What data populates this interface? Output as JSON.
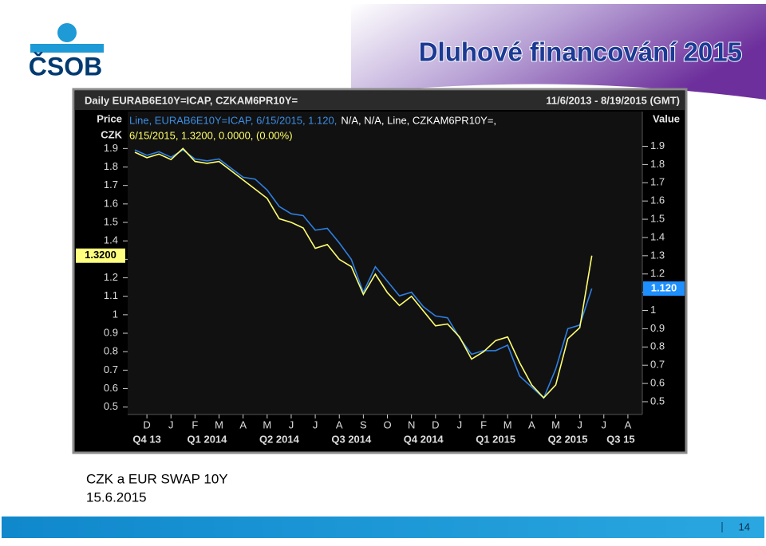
{
  "slide": {
    "logo": "ČSOB",
    "title": "Dluhové financování 2015",
    "caption": "CZK a EUR SWAP 10Y",
    "date": "15.6.2015",
    "page_number": "14"
  },
  "chart_data": {
    "type": "line",
    "header": "Daily EURAB6E10Y=ICAP, CZKAM6PR10Y=",
    "date_range": "11/6/2013 - 8/19/2015 (GMT)",
    "y_label": "Price",
    "y_unit": "CZK",
    "y2_label": "Value",
    "legend": [
      {
        "text": "Line, EURAB6E10Y=ICAP, 6/15/2015, 1.120,",
        "color": "#3a8ee6"
      },
      {
        "text": "N/A, N/A, Line, CZKAM6PR10Y=,",
        "color": "#ffffff"
      },
      {
        "text": "6/15/2015, 1.3200, 0.0000, (0.00%)",
        "color": "#ffff66"
      }
    ],
    "x": [
      0.5,
      1,
      1.5,
      2,
      2.5,
      3,
      3.5,
      4,
      4.5,
      5,
      5.5,
      6,
      6.5,
      7,
      7.5,
      8,
      8.5,
      9,
      9.5,
      10,
      10.5,
      11,
      11.5,
      12,
      12.5,
      13,
      13.5,
      14,
      14.5,
      15,
      15.5,
      16,
      16.5,
      17,
      17.5,
      18,
      18.5,
      19,
      19.5
    ],
    "series": [
      {
        "color": "#2f7fe0",
        "axis": "y2",
        "values": [
          1.88,
          1.85,
          1.87,
          1.84,
          1.88,
          1.83,
          1.82,
          1.83,
          1.78,
          1.73,
          1.72,
          1.66,
          1.57,
          1.53,
          1.52,
          1.44,
          1.45,
          1.37,
          1.28,
          1.1,
          1.24,
          1.16,
          1.08,
          1.1,
          1.02,
          0.97,
          0.96,
          0.85,
          0.76,
          0.78,
          0.78,
          0.81,
          0.64,
          0.58,
          0.52,
          0.68,
          0.9,
          0.92,
          1.12
        ]
      },
      {
        "color": "#ffff70",
        "values": [
          1.88,
          1.85,
          1.87,
          1.84,
          1.9,
          1.83,
          1.82,
          1.83,
          1.78,
          1.73,
          1.68,
          1.63,
          1.52,
          1.5,
          1.47,
          1.36,
          1.38,
          1.3,
          1.26,
          1.11,
          1.22,
          1.12,
          1.05,
          1.1,
          1.02,
          0.94,
          0.95,
          0.88,
          0.76,
          0.8,
          0.86,
          0.88,
          0.74,
          0.62,
          0.55,
          0.62,
          0.87,
          0.93,
          1.32
        ]
      }
    ],
    "xlim": [
      0.2,
      21.6
    ],
    "xticks": [
      {
        "value": 1,
        "label": "D"
      },
      {
        "value": 2,
        "label": "J"
      },
      {
        "value": 3,
        "label": "F"
      },
      {
        "value": 4,
        "label": "M"
      },
      {
        "value": 5,
        "label": "A"
      },
      {
        "value": 6,
        "label": "M"
      },
      {
        "value": 7,
        "label": "J"
      },
      {
        "value": 8,
        "label": "J"
      },
      {
        "value": 9,
        "label": "A"
      },
      {
        "value": 10,
        "label": "S"
      },
      {
        "value": 11,
        "label": "O"
      },
      {
        "value": 12,
        "label": "N"
      },
      {
        "value": 13,
        "label": "D"
      },
      {
        "value": 14,
        "label": "J"
      },
      {
        "value": 15,
        "label": "F"
      },
      {
        "value": 16,
        "label": "M"
      },
      {
        "value": 17,
        "label": "A"
      },
      {
        "value": 18,
        "label": "M"
      },
      {
        "value": 19,
        "label": "J"
      },
      {
        "value": 20,
        "label": "J"
      },
      {
        "value": 21,
        "label": "A"
      }
    ],
    "quarter_ticks": [
      {
        "value": 1,
        "label": "Q4 13"
      },
      {
        "value": 3.5,
        "label": "Q1 2014"
      },
      {
        "value": 6.5,
        "label": "Q2 2014"
      },
      {
        "value": 9.5,
        "label": "Q3 2014"
      },
      {
        "value": 12.5,
        "label": "Q4 2014"
      },
      {
        "value": 15.5,
        "label": "Q1 2015"
      },
      {
        "value": 18.5,
        "label": "Q2 2015"
      },
      {
        "value": 20.7,
        "label": "Q3 15"
      }
    ],
    "ylim": [
      0.46,
      2.1
    ],
    "yticks": [
      1.9,
      1.8,
      1.7,
      1.6,
      1.5,
      1.4,
      1.3,
      1.2,
      1.1,
      1,
      0.9,
      0.8,
      0.7,
      0.6,
      0.5
    ],
    "y2lim": [
      0.43,
      2.09
    ],
    "y2ticks": [
      1.9,
      1.8,
      1.7,
      1.6,
      1.5,
      1.4,
      1.3,
      1.2,
      1.1,
      1,
      0.9,
      0.8,
      0.7,
      0.6,
      0.5
    ],
    "last_value_tags": [
      {
        "axis": "y",
        "value": 1.32,
        "label": "1.3200",
        "color": "#ffff80"
      },
      {
        "axis": "y2",
        "value": 1.12,
        "label": "1.120",
        "color": "#1e8fff"
      }
    ]
  }
}
